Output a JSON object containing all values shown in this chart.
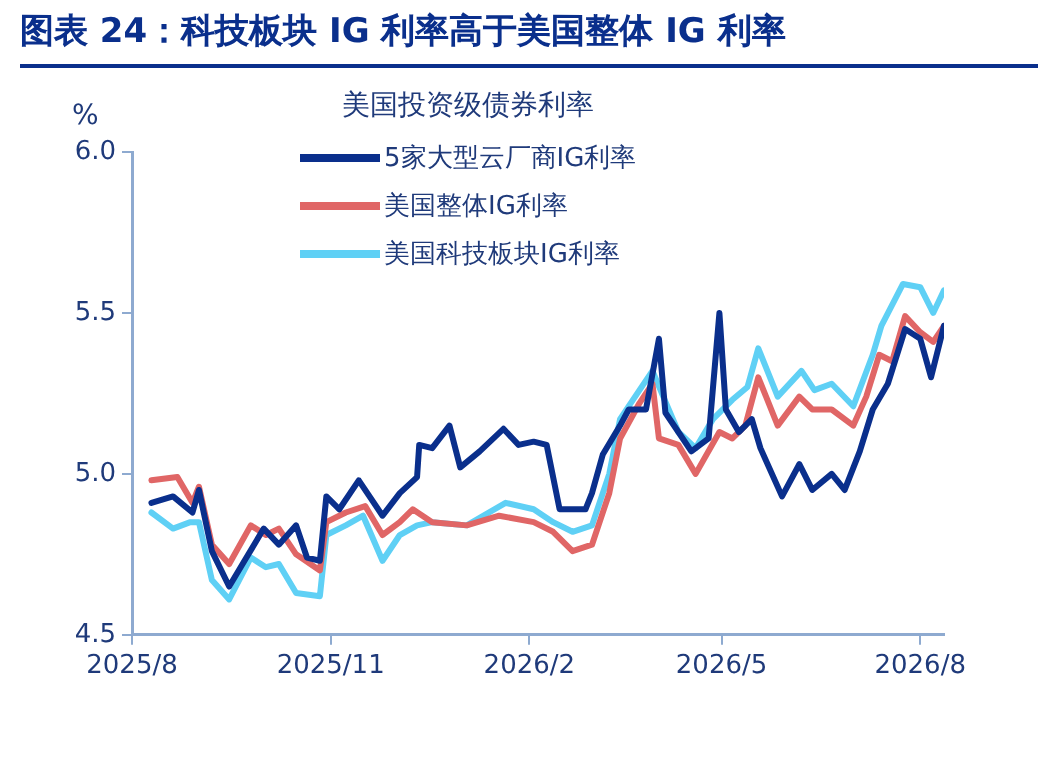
{
  "chart_data": {
    "type": "line",
    "title": "图表 24：科技板块 IG 利率高于美国整体 IG 利率",
    "legend_title": "美国投资级债券利率",
    "ylabel": "%",
    "legend": "top",
    "grid": false,
    "marker": "none",
    "line_style": "solid",
    "xlim": [
      "2025-08-01",
      "2026-08-12"
    ],
    "xticks": [
      {
        "value": "2025-08",
        "label": "2025/8"
      },
      {
        "value": "2025-11",
        "label": "2025/11"
      },
      {
        "value": "2026-02",
        "label": "2026/2"
      },
      {
        "value": "2026-05",
        "label": "2026/5"
      },
      {
        "value": "2026-08",
        "label": "2026/8"
      }
    ],
    "ylim": [
      4.5,
      6.0
    ],
    "yticks": [
      {
        "value": 4.5,
        "label": "4.5"
      },
      {
        "value": 5.0,
        "label": "5.0"
      },
      {
        "value": 5.5,
        "label": "5.5"
      },
      {
        "value": 6.0,
        "label": "6.0"
      }
    ],
    "series": [
      {
        "name": "5家大型云厂商IG利率",
        "color": "#0a2f8c",
        "x": [
          "2025-08-10",
          "2025-08-20",
          "2025-08-29",
          "2025-09-01",
          "2025-09-07",
          "2025-09-15",
          "2025-09-23",
          "2025-10-01",
          "2025-10-08",
          "2025-10-16",
          "2025-10-21",
          "2025-10-27",
          "2025-10-30",
          "2025-11-05",
          "2025-11-14",
          "2025-11-25",
          "2025-12-03",
          "2025-12-11",
          "2025-12-12",
          "2025-12-18",
          "2025-12-26",
          "2025-12-31",
          "2026-01-09",
          "2026-01-20",
          "2026-01-27",
          "2026-02-03",
          "2026-02-09",
          "2026-02-15",
          "2026-02-27",
          "2026-03-02",
          "2026-03-07",
          "2026-03-15",
          "2026-03-19",
          "2026-03-27",
          "2026-04-02",
          "2026-04-05",
          "2026-04-11",
          "2026-04-17",
          "2026-04-25",
          "2026-04-30",
          "2026-05-03",
          "2026-05-09",
          "2026-05-15",
          "2026-05-19",
          "2026-05-29",
          "2026-06-06",
          "2026-06-12",
          "2026-06-21",
          "2026-06-27",
          "2026-07-04",
          "2026-07-10",
          "2026-07-17",
          "2026-07-25",
          "2026-08-01",
          "2026-08-06",
          "2026-08-12"
        ],
        "values": [
          4.91,
          4.93,
          4.88,
          4.95,
          4.76,
          4.65,
          4.74,
          4.83,
          4.78,
          4.84,
          4.74,
          4.73,
          4.93,
          4.89,
          4.98,
          4.87,
          4.94,
          4.99,
          5.09,
          5.08,
          5.15,
          5.02,
          5.07,
          5.14,
          5.09,
          5.1,
          5.09,
          4.89,
          4.89,
          4.94,
          5.06,
          5.15,
          5.2,
          5.2,
          5.42,
          5.19,
          5.13,
          5.07,
          5.11,
          5.5,
          5.2,
          5.13,
          5.17,
          5.08,
          4.93,
          5.03,
          4.95,
          5.0,
          4.95,
          5.07,
          5.2,
          5.28,
          5.45,
          5.42,
          5.3,
          5.46
        ]
      },
      {
        "name": "美国整体IG利率",
        "color": "#e06666",
        "x": [
          "2025-08-10",
          "2025-08-22",
          "2025-08-29",
          "2025-09-01",
          "2025-09-07",
          "2025-09-15",
          "2025-09-25",
          "2025-10-02",
          "2025-10-08",
          "2025-10-16",
          "2025-10-27",
          "2025-10-30",
          "2025-11-08",
          "2025-11-17",
          "2025-11-25",
          "2025-12-03",
          "2025-12-09",
          "2025-12-18",
          "2026-01-03",
          "2026-01-18",
          "2026-02-03",
          "2026-02-12",
          "2026-02-21",
          "2026-03-02",
          "2026-03-10",
          "2026-03-15",
          "2026-03-24",
          "2026-03-30",
          "2026-04-02",
          "2026-04-11",
          "2026-04-19",
          "2026-04-30",
          "2026-05-06",
          "2026-05-12",
          "2026-05-18",
          "2026-05-27",
          "2026-06-06",
          "2026-06-12",
          "2026-06-21",
          "2026-07-01",
          "2026-07-07",
          "2026-07-13",
          "2026-07-19",
          "2026-07-25",
          "2026-08-01",
          "2026-08-07",
          "2026-08-12"
        ],
        "values": [
          4.98,
          4.99,
          4.91,
          4.96,
          4.78,
          4.72,
          4.84,
          4.81,
          4.83,
          4.75,
          4.7,
          4.85,
          4.88,
          4.9,
          4.81,
          4.85,
          4.89,
          4.85,
          4.84,
          4.87,
          4.85,
          4.82,
          4.76,
          4.78,
          4.94,
          5.11,
          5.22,
          5.28,
          5.11,
          5.09,
          5.0,
          5.13,
          5.11,
          5.15,
          5.3,
          5.15,
          5.24,
          5.2,
          5.2,
          5.15,
          5.24,
          5.37,
          5.35,
          5.49,
          5.44,
          5.41,
          5.46
        ]
      },
      {
        "name": "美国科技板块IG利率",
        "color": "#5fd0f5",
        "x": [
          "2025-08-10",
          "2025-08-20",
          "2025-08-28",
          "2025-09-01",
          "2025-09-07",
          "2025-09-15",
          "2025-09-25",
          "2025-10-02",
          "2025-10-08",
          "2025-10-16",
          "2025-10-27",
          "2025-10-30",
          "2025-11-08",
          "2025-11-16",
          "2025-11-25",
          "2025-12-03",
          "2025-12-11",
          "2025-12-18",
          "2026-01-03",
          "2026-01-21",
          "2026-02-03",
          "2026-02-12",
          "2026-02-21",
          "2026-03-02",
          "2026-03-10",
          "2026-03-15",
          "2026-03-24",
          "2026-03-30",
          "2026-04-04",
          "2026-04-11",
          "2026-04-19",
          "2026-04-27",
          "2026-05-06",
          "2026-05-13",
          "2026-05-18",
          "2026-05-27",
          "2026-06-07",
          "2026-06-13",
          "2026-06-21",
          "2026-07-01",
          "2026-07-10",
          "2026-07-14",
          "2026-07-24",
          "2026-08-01",
          "2026-08-07",
          "2026-08-12"
        ],
        "values": [
          4.88,
          4.83,
          4.85,
          4.85,
          4.67,
          4.61,
          4.74,
          4.71,
          4.72,
          4.63,
          4.62,
          4.81,
          4.84,
          4.87,
          4.73,
          4.81,
          4.84,
          4.85,
          4.84,
          4.91,
          4.89,
          4.85,
          4.82,
          4.84,
          5.0,
          5.17,
          5.26,
          5.32,
          5.24,
          5.13,
          5.08,
          5.17,
          5.23,
          5.27,
          5.39,
          5.24,
          5.32,
          5.26,
          5.28,
          5.21,
          5.37,
          5.46,
          5.59,
          5.58,
          5.5,
          5.57
        ]
      }
    ]
  }
}
